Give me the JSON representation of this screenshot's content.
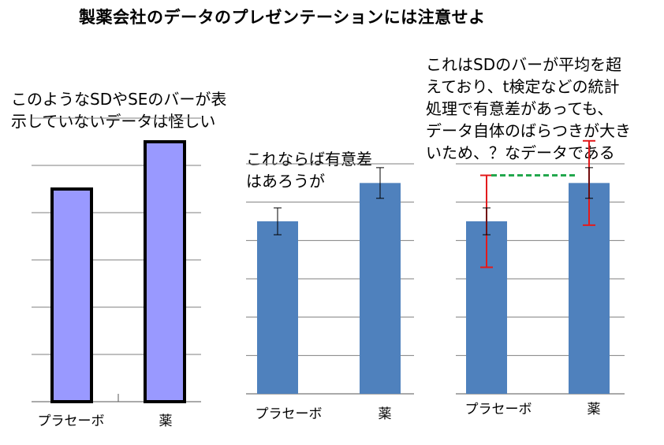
{
  "title": "製薬会社のデータのプレゼンテーションには注意せよ",
  "captions": {
    "panel1": [
      "このようなSDやSEのバーが表",
      "示していないデータは怪しい"
    ],
    "panel2": [
      "これならば有意差",
      "はあろうが"
    ],
    "panel3": [
      "これはSDのバーが平均を超",
      "えており、t検定などの統計",
      "処理で有意差があっても、",
      "データ自体のばらつきが大き",
      "いため、？なデータである"
    ]
  },
  "colors": {
    "panel1_bar": "#9999FF",
    "panel1_bar_border": "#000000",
    "bar": "#4F81BD",
    "sd_bar": "#E31A1C",
    "difference_line": "#1FA64A",
    "grid": "#000000"
  },
  "chart_data": [
    {
      "type": "bar",
      "categories": [
        "プラセーボ",
        "薬"
      ],
      "values": [
        4.5,
        5.5
      ],
      "ylim": [
        0,
        6
      ],
      "grid": true,
      "error_bars": false
    },
    {
      "type": "bar",
      "categories": [
        "プラセーボ",
        "薬"
      ],
      "values": [
        4.5,
        5.5
      ],
      "error": [
        0.35,
        0.4
      ],
      "ylim": [
        0,
        6
      ],
      "grid": true
    },
    {
      "type": "bar",
      "categories": [
        "プラセーボ",
        "薬"
      ],
      "values": [
        4.5,
        5.5
      ],
      "error": [
        0.35,
        0.4
      ],
      "sd": [
        1.2,
        1.1
      ],
      "ylim": [
        0,
        6
      ],
      "grid": true,
      "reference_line": "dashed line joining the top of the placebo SD bar to the drug bar"
    }
  ]
}
